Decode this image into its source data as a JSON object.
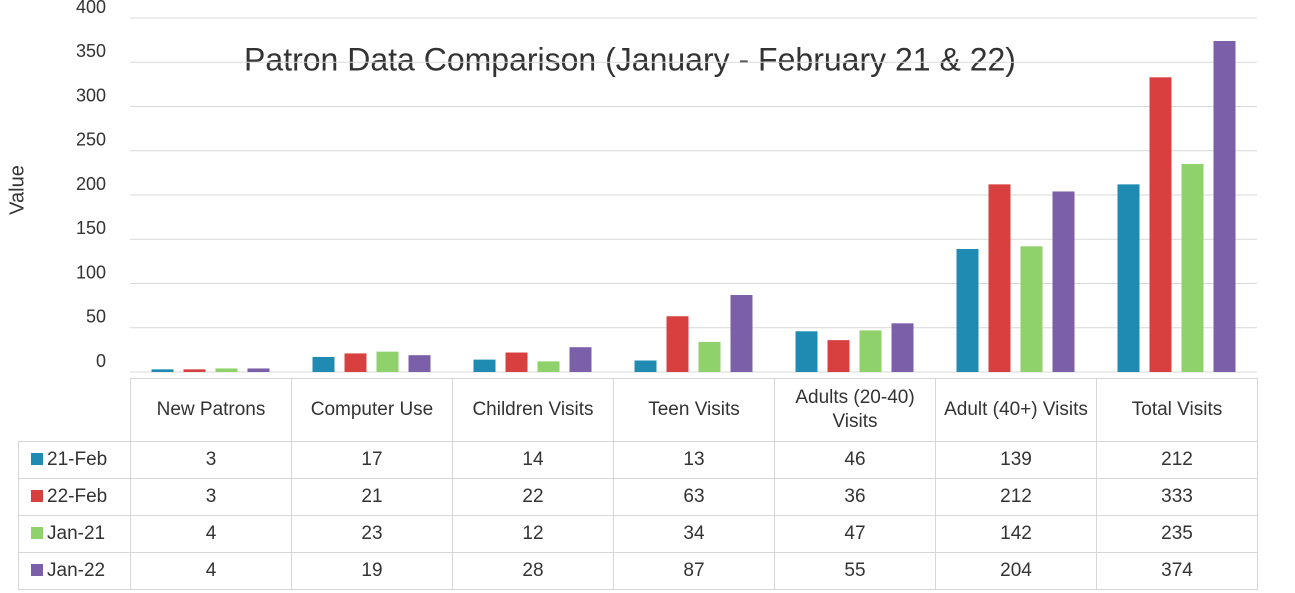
{
  "chart_data": {
    "type": "bar",
    "title": "Patron Data Comparison (January - February 21 & 22)",
    "y_label": "Value",
    "categories": [
      "New Patrons",
      "Computer Use",
      "Children Visits",
      "Teen Visits",
      "Adults (20-40) Visits",
      "Adult (40+) Visits",
      "Total Visits"
    ],
    "series": [
      {
        "name": "21-Feb",
        "color": "#1f8bb3",
        "values": [
          3,
          17,
          14,
          13,
          46,
          139,
          212
        ]
      },
      {
        "name": "22-Feb",
        "color": "#d8403f",
        "values": [
          3,
          21,
          22,
          63,
          36,
          212,
          333
        ]
      },
      {
        "name": "Jan-21",
        "color": "#8fd16a",
        "values": [
          4,
          23,
          12,
          34,
          47,
          142,
          235
        ]
      },
      {
        "name": "Jan-22",
        "color": "#7b5fa8",
        "values": [
          4,
          19,
          28,
          87,
          55,
          204,
          374
        ]
      }
    ],
    "ylim": [
      0,
      400
    ],
    "yticks": [
      0,
      50,
      100,
      150,
      200,
      250,
      300,
      350,
      400
    ],
    "grid": true
  }
}
